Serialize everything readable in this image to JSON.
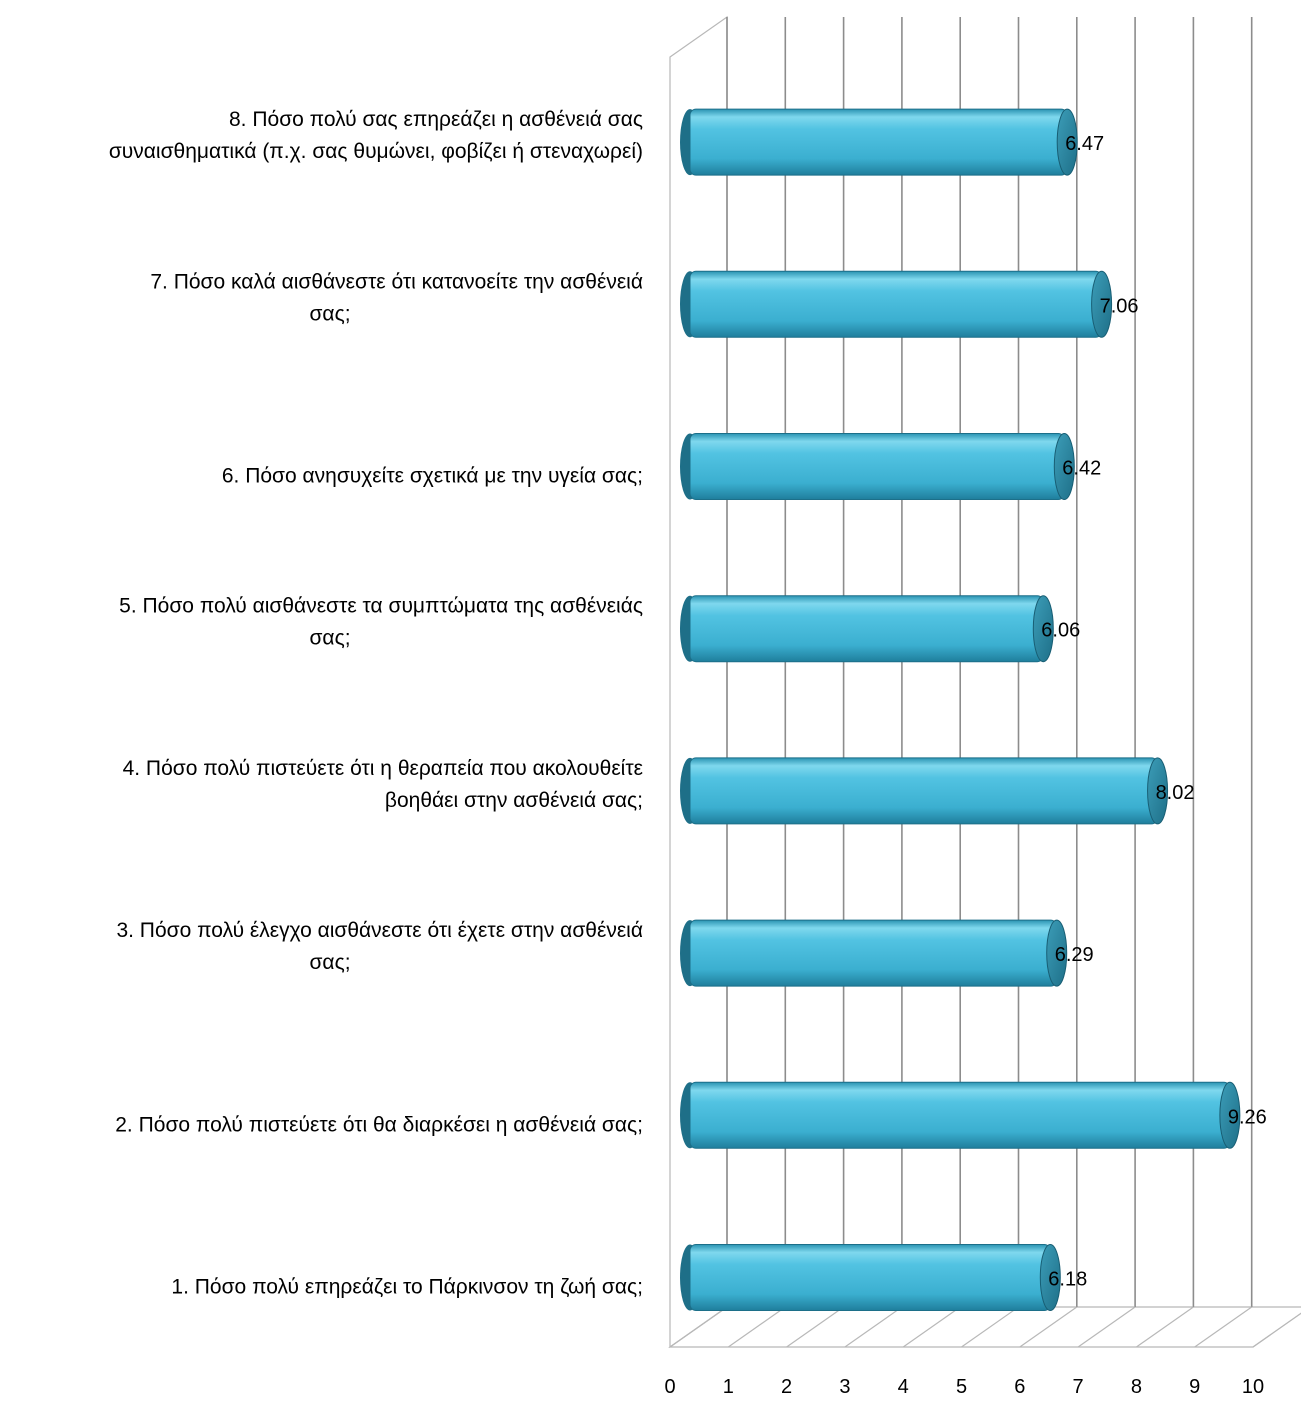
{
  "chart_data": {
    "type": "bar",
    "orientation": "horizontal",
    "style": "3d-cylinder",
    "title": "",
    "xlabel": "",
    "ylabel": "",
    "xlim": [
      0,
      10
    ],
    "x_ticks": [
      "0",
      "1",
      "2",
      "3",
      "4",
      "5",
      "6",
      "7",
      "8",
      "9",
      "10"
    ],
    "grid": true,
    "legend": "none",
    "bar_color": "#4BBFDE",
    "categories": [
      [
        "8. Πόσο πολύ σας επηρεάζει η ασθένειά σας",
        "συναισθηματικά (π.χ. σας θυμώνει, φοβίζει ή στεναχωρεί)"
      ],
      [
        "7. Πόσο καλά αισθάνεστε ότι κατανοείτε την ασθένειά",
        "σας;"
      ],
      [
        "6. Πόσο ανησυχείτε σχετικά με την υγεία σας;"
      ],
      [
        "5. Πόσο πολύ αισθάνεστε τα συμπτώματα της ασθένειάς",
        "σας;"
      ],
      [
        "4. Πόσο πολύ πιστεύετε ότι η θεραπεία που ακολουθείτε",
        "βοηθάει στην ασθένειά σας;"
      ],
      [
        "3. Πόσο πολύ έλεγχο αισθάνεστε ότι έχετε στην ασθένειά",
        "σας;"
      ],
      [
        "2. Πόσο πολύ πιστεύετε ότι θα διαρκέσει η ασθένειά σας;"
      ],
      [
        "1. Πόσο πολύ επηρεάζει το Πάρκινσον τη ζωή σας;"
      ]
    ],
    "values": [
      6.47,
      7.06,
      6.42,
      6.06,
      8.02,
      6.29,
      9.26,
      6.18
    ],
    "value_labels": [
      "6.47",
      "7.06",
      "6.42",
      "6.06",
      "8.02",
      "6.29",
      "9.26",
      "6.18"
    ]
  }
}
